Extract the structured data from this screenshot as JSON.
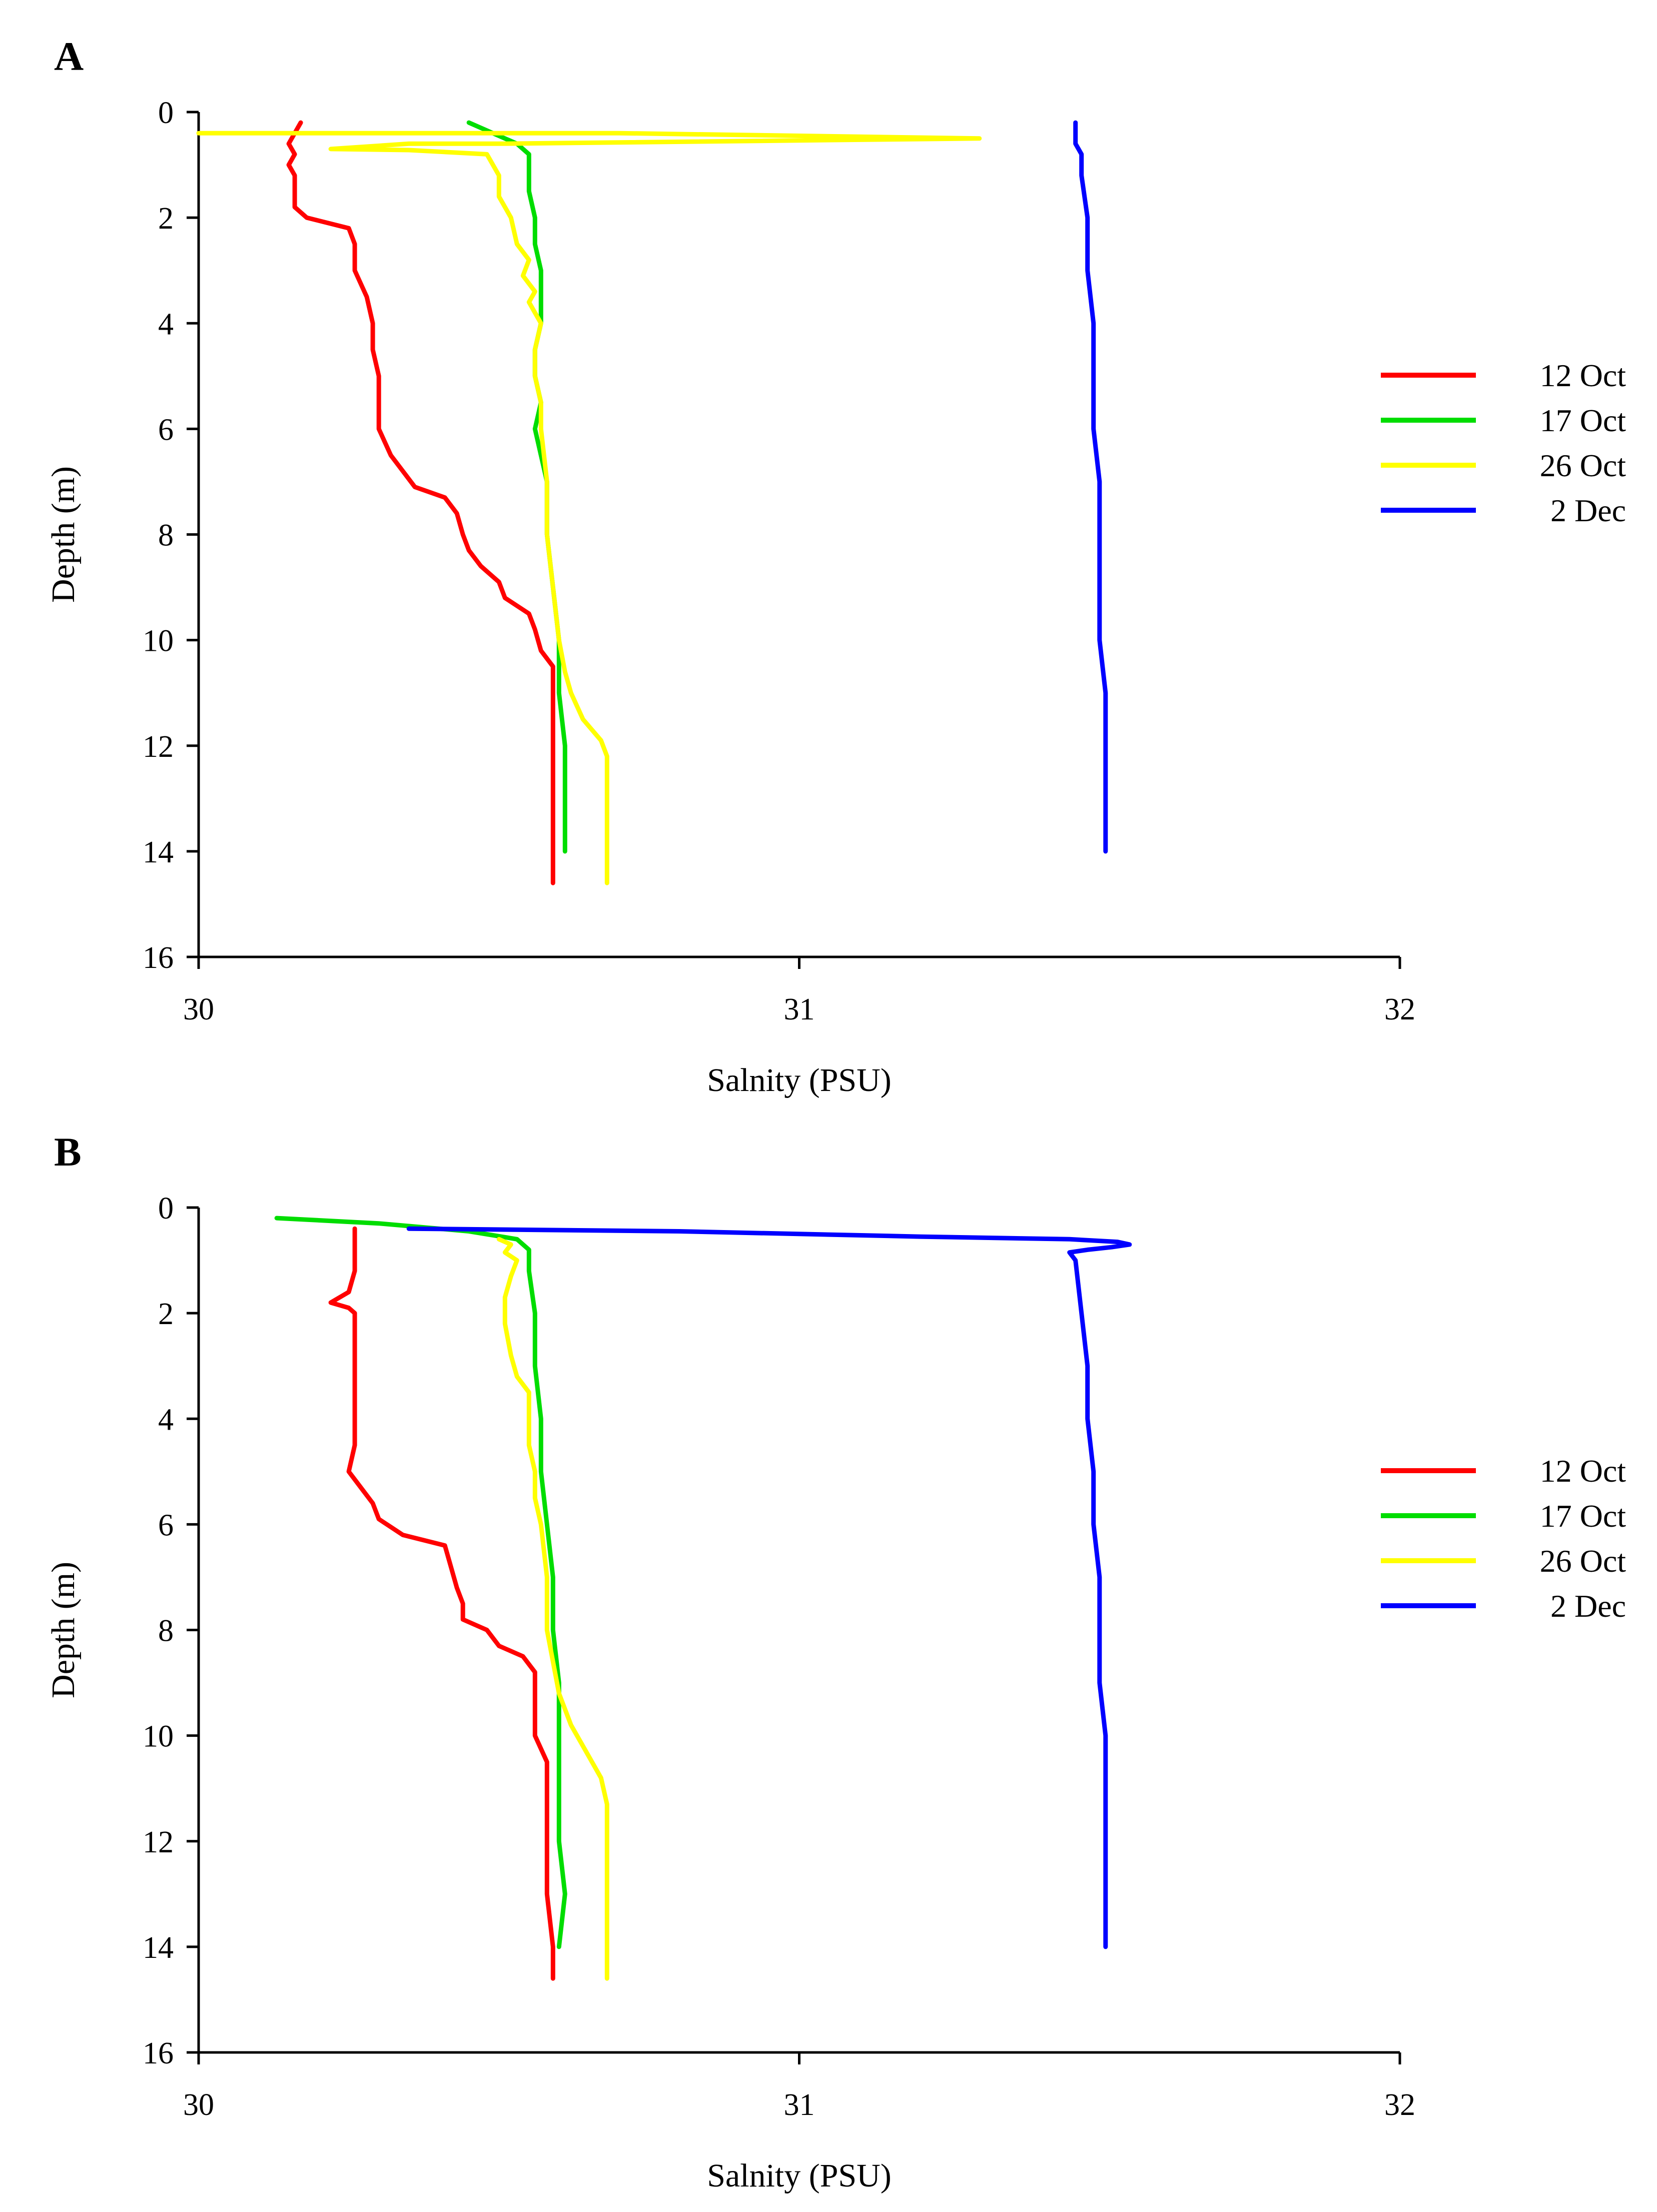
{
  "colors": {
    "12 Oct": "#ff0000",
    "17 Oct": "#00dd00",
    "26 Oct": "#ffff00",
    "2 Dec": "#0000ff"
  },
  "chart_data": [
    {
      "panel_label": "A",
      "type": "line",
      "xlabel": "Salnity (PSU)",
      "ylabel": "Depth (m)",
      "xlim": [
        30,
        32
      ],
      "ylim": [
        0,
        16
      ],
      "y_inverted": true,
      "x_ticks": [
        30,
        31,
        32
      ],
      "y_ticks": [
        0,
        2,
        4,
        6,
        8,
        10,
        12,
        14,
        16
      ],
      "grid": false,
      "legend_position": "right",
      "series": [
        {
          "name": "12 Oct",
          "points": [
            [
              30.17,
              0.2
            ],
            [
              30.16,
              0.4
            ],
            [
              30.15,
              0.6
            ],
            [
              30.16,
              0.8
            ],
            [
              30.15,
              1.0
            ],
            [
              30.16,
              1.2
            ],
            [
              30.16,
              1.5
            ],
            [
              30.16,
              1.8
            ],
            [
              30.18,
              2.0
            ],
            [
              30.25,
              2.2
            ],
            [
              30.26,
              2.5
            ],
            [
              30.26,
              3.0
            ],
            [
              30.28,
              3.5
            ],
            [
              30.29,
              4.0
            ],
            [
              30.29,
              4.5
            ],
            [
              30.3,
              5.0
            ],
            [
              30.3,
              5.5
            ],
            [
              30.3,
              6.0
            ],
            [
              30.32,
              6.5
            ],
            [
              30.34,
              6.8
            ],
            [
              30.36,
              7.1
            ],
            [
              30.41,
              7.3
            ],
            [
              30.43,
              7.6
            ],
            [
              30.44,
              8.0
            ],
            [
              30.45,
              8.3
            ],
            [
              30.47,
              8.6
            ],
            [
              30.5,
              8.9
            ],
            [
              30.51,
              9.2
            ],
            [
              30.55,
              9.5
            ],
            [
              30.56,
              9.8
            ],
            [
              30.57,
              10.2
            ],
            [
              30.59,
              10.5
            ],
            [
              30.59,
              11.0
            ],
            [
              30.59,
              12.0
            ],
            [
              30.59,
              13.0
            ],
            [
              30.59,
              14.0
            ],
            [
              30.59,
              14.6
            ]
          ]
        },
        {
          "name": "17 Oct",
          "points": [
            [
              30.45,
              0.2
            ],
            [
              30.49,
              0.4
            ],
            [
              30.53,
              0.6
            ],
            [
              30.55,
              0.8
            ],
            [
              30.55,
              1.5
            ],
            [
              30.56,
              2.0
            ],
            [
              30.56,
              2.5
            ],
            [
              30.57,
              3.0
            ],
            [
              30.57,
              3.5
            ],
            [
              30.57,
              4.0
            ],
            [
              30.56,
              4.5
            ],
            [
              30.56,
              5.0
            ],
            [
              30.57,
              5.5
            ],
            [
              30.56,
              6.0
            ],
            [
              30.57,
              6.5
            ],
            [
              30.58,
              7.0
            ],
            [
              30.58,
              8.0
            ],
            [
              30.59,
              9.0
            ],
            [
              30.6,
              10.0
            ],
            [
              30.6,
              11.0
            ],
            [
              30.61,
              12.0
            ],
            [
              30.61,
              13.0
            ],
            [
              30.61,
              14.0
            ]
          ]
        },
        {
          "name": "26 Oct",
          "points": [
            [
              30.0,
              0.4
            ],
            [
              30.7,
              0.4
            ],
            [
              31.3,
              0.5
            ],
            [
              30.9,
              0.55
            ],
            [
              30.5,
              0.6
            ],
            [
              30.35,
              0.6
            ],
            [
              30.22,
              0.7
            ],
            [
              30.35,
              0.72
            ],
            [
              30.48,
              0.8
            ],
            [
              30.5,
              1.2
            ],
            [
              30.5,
              1.6
            ],
            [
              30.52,
              2.0
            ],
            [
              30.53,
              2.5
            ],
            [
              30.55,
              2.8
            ],
            [
              30.54,
              3.1
            ],
            [
              30.56,
              3.4
            ],
            [
              30.55,
              3.6
            ],
            [
              30.57,
              4.0
            ],
            [
              30.56,
              4.5
            ],
            [
              30.56,
              5.0
            ],
            [
              30.57,
              5.5
            ],
            [
              30.57,
              6.0
            ],
            [
              30.58,
              7.0
            ],
            [
              30.58,
              8.0
            ],
            [
              30.59,
              9.0
            ],
            [
              30.6,
              10.0
            ],
            [
              30.61,
              10.6
            ],
            [
              30.62,
              11.0
            ],
            [
              30.64,
              11.5
            ],
            [
              30.67,
              11.9
            ],
            [
              30.68,
              12.2
            ],
            [
              30.68,
              13.0
            ],
            [
              30.68,
              14.0
            ],
            [
              30.68,
              14.6
            ]
          ]
        },
        {
          "name": "2 Dec",
          "points": [
            [
              31.46,
              0.2
            ],
            [
              31.46,
              0.4
            ],
            [
              31.46,
              0.6
            ],
            [
              31.47,
              0.8
            ],
            [
              31.47,
              1.2
            ],
            [
              31.48,
              2.0
            ],
            [
              31.48,
              3.0
            ],
            [
              31.49,
              4.0
            ],
            [
              31.49,
              5.0
            ],
            [
              31.49,
              6.0
            ],
            [
              31.5,
              7.0
            ],
            [
              31.5,
              8.0
            ],
            [
              31.5,
              9.0
            ],
            [
              31.5,
              10.0
            ],
            [
              31.51,
              11.0
            ],
            [
              31.51,
              12.0
            ],
            [
              31.51,
              13.0
            ],
            [
              31.51,
              14.0
            ]
          ]
        }
      ]
    },
    {
      "panel_label": "B",
      "type": "line",
      "xlabel": "Salnity (PSU)",
      "ylabel": "Depth (m)",
      "xlim": [
        30,
        32
      ],
      "ylim": [
        0,
        16
      ],
      "y_inverted": true,
      "x_ticks": [
        30,
        31,
        32
      ],
      "y_ticks": [
        0,
        2,
        4,
        6,
        8,
        10,
        12,
        14,
        16
      ],
      "grid": false,
      "legend_position": "right",
      "series": [
        {
          "name": "12 Oct",
          "points": [
            [
              30.26,
              0.4
            ],
            [
              30.26,
              0.8
            ],
            [
              30.26,
              1.2
            ],
            [
              30.25,
              1.6
            ],
            [
              30.22,
              1.8
            ],
            [
              30.25,
              1.9
            ],
            [
              30.26,
              2.0
            ],
            [
              30.26,
              2.5
            ],
            [
              30.26,
              3.0
            ],
            [
              30.26,
              3.5
            ],
            [
              30.26,
              4.0
            ],
            [
              30.26,
              4.5
            ],
            [
              30.25,
              5.0
            ],
            [
              30.27,
              5.3
            ],
            [
              30.29,
              5.6
            ],
            [
              30.3,
              5.9
            ],
            [
              30.34,
              6.2
            ],
            [
              30.41,
              6.4
            ],
            [
              30.42,
              6.8
            ],
            [
              30.43,
              7.2
            ],
            [
              30.44,
              7.5
            ],
            [
              30.44,
              7.8
            ],
            [
              30.48,
              8.0
            ],
            [
              30.5,
              8.3
            ],
            [
              30.54,
              8.5
            ],
            [
              30.56,
              8.8
            ],
            [
              30.56,
              9.2
            ],
            [
              30.56,
              9.6
            ],
            [
              30.56,
              10.0
            ],
            [
              30.58,
              10.5
            ],
            [
              30.58,
              11.0
            ],
            [
              30.58,
              12.0
            ],
            [
              30.58,
              13.0
            ],
            [
              30.59,
              14.0
            ],
            [
              30.59,
              14.6
            ]
          ]
        },
        {
          "name": "17 Oct",
          "points": [
            [
              30.13,
              0.2
            ],
            [
              30.3,
              0.3
            ],
            [
              30.45,
              0.45
            ],
            [
              30.53,
              0.6
            ],
            [
              30.55,
              0.8
            ],
            [
              30.55,
              1.2
            ],
            [
              30.56,
              2.0
            ],
            [
              30.56,
              3.0
            ],
            [
              30.57,
              4.0
            ],
            [
              30.57,
              5.0
            ],
            [
              30.58,
              6.0
            ],
            [
              30.59,
              7.0
            ],
            [
              30.59,
              8.0
            ],
            [
              30.6,
              9.0
            ],
            [
              30.6,
              10.0
            ],
            [
              30.6,
              11.0
            ],
            [
              30.6,
              12.0
            ],
            [
              30.61,
              13.0
            ],
            [
              30.6,
              14.0
            ]
          ]
        },
        {
          "name": "26 Oct",
          "points": [
            [
              30.5,
              0.6
            ],
            [
              30.52,
              0.7
            ],
            [
              30.51,
              0.85
            ],
            [
              30.53,
              1.0
            ],
            [
              30.52,
              1.3
            ],
            [
              30.51,
              1.7
            ],
            [
              30.51,
              2.2
            ],
            [
              30.52,
              2.8
            ],
            [
              30.53,
              3.2
            ],
            [
              30.55,
              3.5
            ],
            [
              30.55,
              4.0
            ],
            [
              30.55,
              4.5
            ],
            [
              30.56,
              5.0
            ],
            [
              30.56,
              5.5
            ],
            [
              30.57,
              6.0
            ],
            [
              30.58,
              7.0
            ],
            [
              30.58,
              8.0
            ],
            [
              30.59,
              8.6
            ],
            [
              30.6,
              9.2
            ],
            [
              30.62,
              9.8
            ],
            [
              30.64,
              10.2
            ],
            [
              30.67,
              10.8
            ],
            [
              30.68,
              11.3
            ],
            [
              30.68,
              12.0
            ],
            [
              30.68,
              13.0
            ],
            [
              30.68,
              14.0
            ],
            [
              30.68,
              14.6
            ]
          ]
        },
        {
          "name": "2 Dec",
          "points": [
            [
              30.35,
              0.4
            ],
            [
              30.8,
              0.45
            ],
            [
              31.2,
              0.55
            ],
            [
              31.45,
              0.6
            ],
            [
              31.53,
              0.65
            ],
            [
              31.55,
              0.7
            ],
            [
              31.52,
              0.75
            ],
            [
              31.48,
              0.8
            ],
            [
              31.45,
              0.85
            ],
            [
              31.46,
              1.0
            ],
            [
              31.47,
              2.0
            ],
            [
              31.48,
              3.0
            ],
            [
              31.48,
              4.0
            ],
            [
              31.49,
              5.0
            ],
            [
              31.49,
              6.0
            ],
            [
              31.5,
              7.0
            ],
            [
              31.5,
              8.0
            ],
            [
              31.5,
              9.0
            ],
            [
              31.51,
              10.0
            ],
            [
              31.51,
              11.0
            ],
            [
              31.51,
              12.0
            ],
            [
              31.51,
              13.0
            ],
            [
              31.51,
              14.0
            ]
          ]
        }
      ]
    }
  ]
}
